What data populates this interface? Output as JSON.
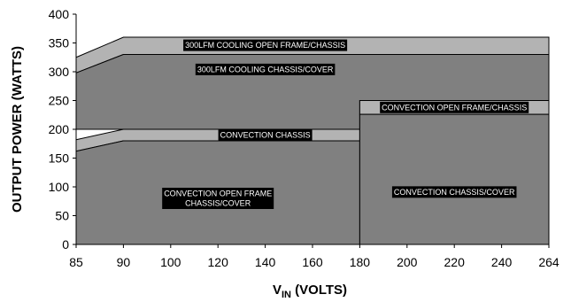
{
  "chart_data": {
    "type": "area",
    "xlabel": {
      "main": "V",
      "sub": "IN",
      "rest": " (VOLTS)"
    },
    "ylabel": "OUTPUT POWER (WATTS)",
    "x_ticks": [
      "85",
      "90",
      "100",
      "120",
      "140",
      "160",
      "180",
      "200",
      "220",
      "240",
      "264"
    ],
    "ylim": [
      0,
      400
    ],
    "y_ticks": [
      0,
      50,
      100,
      150,
      200,
      250,
      300,
      350,
      400
    ],
    "grid": false,
    "regions": [
      {
        "name": "300LFM COOLING OPEN FRAME/CHASSIS",
        "label": [
          "300LFM COOLING OPEN FRAME/CHASSIS"
        ],
        "color": "#b3b3b3",
        "upper": [
          [
            "85",
            325
          ],
          [
            "90",
            360
          ],
          [
            "264",
            360
          ]
        ],
        "lower": [
          [
            "85",
            298
          ],
          [
            "90",
            330
          ],
          [
            "264",
            330
          ]
        ],
        "label_at": [
          "140",
          346
        ]
      },
      {
        "name": "300LFM COOLING CHASSIS/COVER",
        "label": [
          "300LFM COOLING CHASSIS/COVER"
        ],
        "color": "#808080",
        "upper": [
          [
            "85",
            298
          ],
          [
            "90",
            330
          ],
          [
            "264",
            330
          ]
        ],
        "lower": [
          [
            "85",
            200
          ],
          [
            "90",
            200
          ],
          [
            "180",
            200
          ],
          [
            "180",
            250
          ],
          [
            "264",
            250
          ]
        ],
        "label_at": [
          "140",
          304
        ]
      },
      {
        "name": "CONVECTION CHASSIS",
        "label": [
          "CONVECTION CHASSIS"
        ],
        "color": "#b3b3b3",
        "upper": [
          [
            "85",
            182
          ],
          [
            "90",
            200
          ],
          [
            "180",
            200
          ]
        ],
        "lower": [
          [
            "85",
            162
          ],
          [
            "90",
            180
          ],
          [
            "180",
            180
          ]
        ],
        "label_at": [
          "140",
          190
        ]
      },
      {
        "name": "CONVECTION OPEN FRAME/CHASSIS",
        "label": [
          "CONVECTION OPEN FRAME/CHASSIS"
        ],
        "color": "#b3b3b3",
        "upper": [
          [
            "180",
            250
          ],
          [
            "264",
            250
          ]
        ],
        "lower": [
          [
            "180",
            226
          ],
          [
            "264",
            226
          ]
        ],
        "label_at": [
          "220",
          238
        ]
      },
      {
        "name": "CONVECTION OPEN FRAME CHASSIS/COVER",
        "label": [
          "CONVECTION OPEN FRAME",
          "CHASSIS/COVER"
        ],
        "color": "#808080",
        "upper": [
          [
            "85",
            162
          ],
          [
            "90",
            180
          ],
          [
            "180",
            180
          ]
        ],
        "lower": [
          [
            "85",
            0
          ],
          [
            "180",
            0
          ]
        ],
        "label_at": [
          "120",
          80
        ]
      },
      {
        "name": "CONVECTION CHASSIS/COVER",
        "label": [
          "CONVECTION CHASSIS/COVER"
        ],
        "color": "#808080",
        "upper": [
          [
            "180",
            226
          ],
          [
            "264",
            226
          ]
        ],
        "lower": [
          [
            "180",
            0
          ],
          [
            "264",
            0
          ]
        ],
        "label_at": [
          "220",
          91
        ]
      }
    ]
  }
}
